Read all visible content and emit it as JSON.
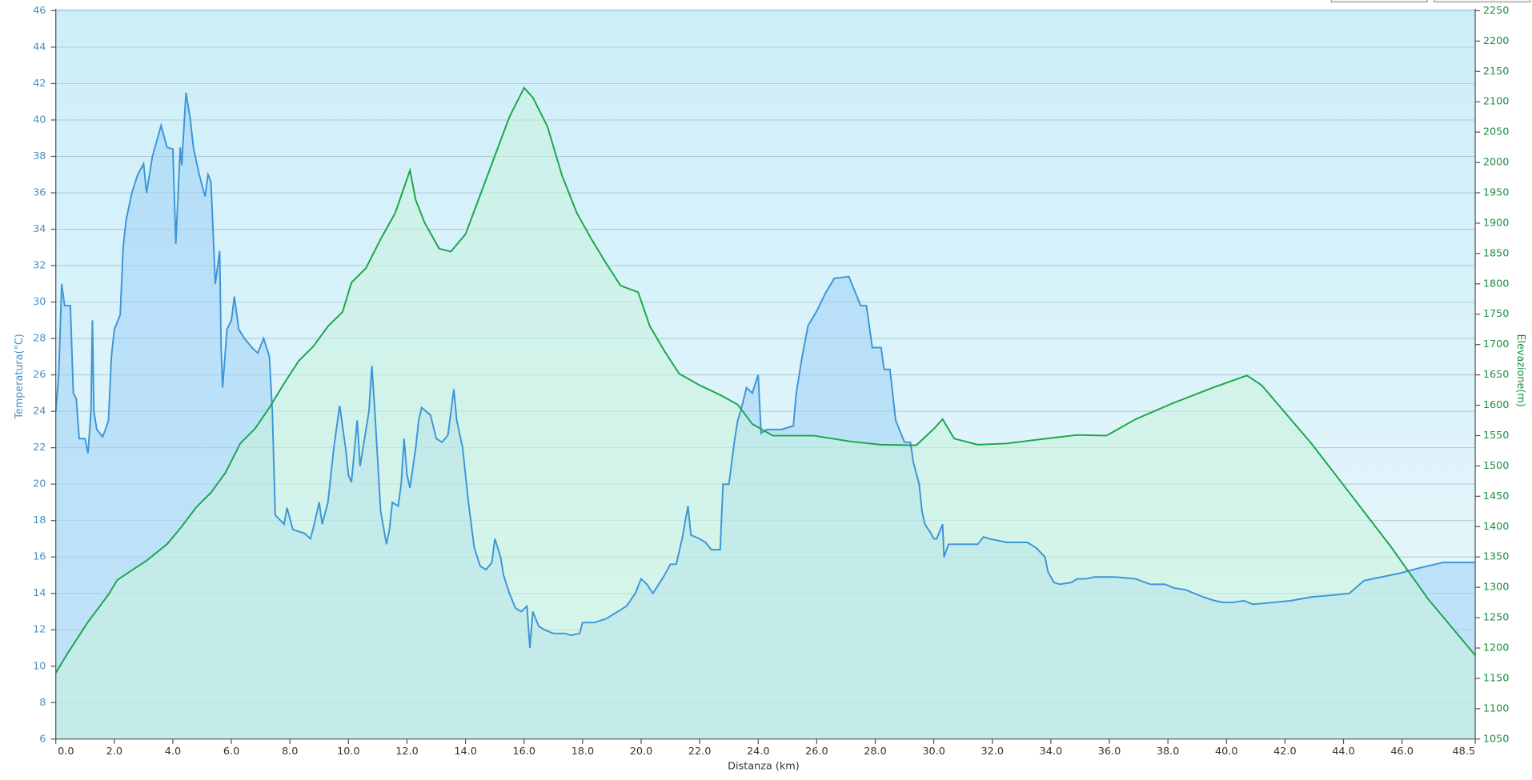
{
  "chart_data": {
    "type": "line",
    "xlabel": "Distanza  (km)",
    "ylabel": "Temperatura(°C)",
    "y2label": "Elevazione(m)",
    "xlim": [
      0,
      48.5
    ],
    "xticks": [
      {
        "value": 0,
        "label": "0.0"
      },
      {
        "value": 2,
        "label": "2.0"
      },
      {
        "value": 4,
        "label": "4.0"
      },
      {
        "value": 6,
        "label": "6.0"
      },
      {
        "value": 8,
        "label": "8.0"
      },
      {
        "value": 10,
        "label": "10.0"
      },
      {
        "value": 12,
        "label": "12.0"
      },
      {
        "value": 14,
        "label": "14.0"
      },
      {
        "value": 16,
        "label": "16.0"
      },
      {
        "value": 18,
        "label": "18.0"
      },
      {
        "value": 20,
        "label": "20.0"
      },
      {
        "value": 22,
        "label": "22.0"
      },
      {
        "value": 24,
        "label": "24.0"
      },
      {
        "value": 26,
        "label": "26.0"
      },
      {
        "value": 28,
        "label": "28.0"
      },
      {
        "value": 30,
        "label": "30.0"
      },
      {
        "value": 32,
        "label": "32.0"
      },
      {
        "value": 34,
        "label": "34.0"
      },
      {
        "value": 36,
        "label": "36.0"
      },
      {
        "value": 38,
        "label": "38.0"
      },
      {
        "value": 40,
        "label": "40.0"
      },
      {
        "value": 42,
        "label": "42.0"
      },
      {
        "value": 44,
        "label": "44.0"
      },
      {
        "value": 46,
        "label": "46.0"
      },
      48.5
    ],
    "ylim": [
      6,
      46
    ],
    "yticks": [
      6,
      8,
      10,
      12,
      14,
      16,
      18,
      20,
      22,
      24,
      26,
      28,
      30,
      32,
      34,
      36,
      38,
      40,
      42,
      44,
      46
    ],
    "y2lim": [
      1050,
      2250
    ],
    "y2ticks": [
      1050,
      1100,
      1150,
      1200,
      1250,
      1300,
      1350,
      1400,
      1450,
      1500,
      1550,
      1600,
      1650,
      1700,
      1750,
      1800,
      1850,
      1900,
      1950,
      2000,
      2050,
      2100,
      2150,
      2200,
      2250
    ],
    "grid": true,
    "series": [
      {
        "color": "#3d95d8",
        "fill": "#9fd2f5",
        "x": [
          0,
          0.1,
          0.2,
          0.3,
          0.5,
          0.6,
          0.7,
          0.8,
          1.0,
          1.1,
          1.2,
          1.25,
          1.3,
          1.4,
          1.6,
          1.7,
          1.8,
          1.9,
          2.0,
          2.2,
          2.3,
          2.4,
          2.6,
          2.7,
          2.8,
          3.0,
          3.1,
          3.3,
          3.6,
          3.8,
          4.0,
          4.1,
          4.25,
          4.3,
          4.45,
          4.6,
          4.7,
          4.9,
          5.1,
          5.2,
          5.3,
          5.45,
          5.6,
          5.65,
          5.7,
          5.85,
          6.0,
          6.1,
          6.25,
          6.45,
          6.7,
          6.9,
          7.1,
          7.3,
          7.4,
          7.5,
          7.8,
          7.9,
          8.1,
          8.5,
          8.7,
          8.8,
          9.0,
          9.1,
          9.3,
          9.5,
          9.7,
          9.9,
          10.0,
          10.1,
          10.3,
          10.4,
          10.5,
          10.7,
          10.8,
          10.9,
          11.1,
          11.3,
          11.4,
          11.5,
          11.7,
          11.8,
          11.9,
          12.0,
          12.1,
          12.3,
          12.4,
          12.5,
          12.8,
          13.0,
          13.2,
          13.4,
          13.6,
          13.7,
          13.9,
          14.1,
          14.3,
          14.5,
          14.7,
          14.9,
          15.0,
          15.2,
          15.3,
          15.5,
          15.7,
          15.9,
          16.1,
          16.2,
          16.3,
          16.5,
          16.7,
          17.0,
          17.4,
          17.6,
          17.9,
          18.0,
          18.4,
          18.6,
          18.8,
          19.2,
          19.5,
          19.8,
          20.0,
          20.2,
          20.4,
          20.6,
          20.8,
          21.0,
          21.2,
          21.3,
          21.4,
          21.6,
          21.7,
          22.0,
          22.2,
          22.4,
          22.7,
          22.8,
          23.0,
          23.2,
          23.3,
          23.4,
          23.6,
          23.8,
          24.0,
          24.1,
          24.3,
          24.8,
          25.2,
          25.3,
          25.5,
          25.7,
          26.0,
          26.3,
          26.6,
          27.1,
          27.5,
          27.7,
          27.9,
          28.2,
          28.3,
          28.5,
          28.7,
          29.0,
          29.2,
          29.3,
          29.5,
          29.6,
          29.7,
          29.9,
          30.0,
          30.1,
          30.3,
          30.35,
          30.5,
          30.9,
          31.5,
          31.7,
          31.9,
          32.2,
          32.5,
          32.9,
          33.2,
          33.5,
          33.8,
          33.9,
          34.1,
          34.3,
          34.7,
          34.9,
          35.2,
          35.5,
          36.2,
          36.9,
          37.4,
          37.9,
          38.2,
          38.6,
          38.9,
          39.2,
          39.6,
          39.9,
          40.2,
          40.6,
          40.9,
          41.6,
          42.2,
          42.9,
          43.6,
          44.2,
          44.7,
          45.3,
          45.9,
          46.6,
          47.4,
          48.5
        ],
        "values": [
          24,
          26,
          31,
          29.8,
          29.8,
          25,
          24.7,
          22.5,
          22.5,
          21.7,
          24,
          29,
          24,
          23,
          22.6,
          23,
          23.5,
          27,
          28.5,
          29.3,
          33,
          34.5,
          36,
          36.5,
          37,
          37.6,
          36,
          38,
          39.7,
          38.5,
          38.4,
          33.2,
          38.5,
          37.5,
          41.5,
          40,
          38.5,
          37,
          35.8,
          37,
          36.6,
          31,
          32.8,
          27.5,
          25.3,
          28.5,
          29,
          30.3,
          28.5,
          28,
          27.5,
          27.2,
          28,
          27,
          24,
          18.3,
          17.8,
          18.7,
          17.5,
          17.3,
          17,
          17.6,
          19,
          17.8,
          19,
          22,
          24.3,
          22,
          20.5,
          20.1,
          23.5,
          21,
          22,
          24,
          26.5,
          24,
          18.5,
          16.7,
          17.5,
          19,
          18.8,
          20,
          22.5,
          20.5,
          19.8,
          22,
          23.5,
          24.2,
          23.8,
          22.5,
          22.3,
          22.7,
          25.2,
          23.5,
          22,
          19,
          16.5,
          15.5,
          15.3,
          15.7,
          17,
          16,
          15,
          14,
          13.2,
          13,
          13.3,
          11,
          13,
          12.2,
          12,
          11.8,
          11.8,
          11.7,
          11.8,
          12.4,
          12.4,
          12.5,
          12.6,
          13,
          13.3,
          14,
          14.8,
          14.5,
          14,
          14.5,
          15,
          15.6,
          15.6,
          16.3,
          17,
          18.8,
          17.2,
          17,
          16.8,
          16.4,
          16.4,
          20,
          20,
          22.5,
          23.5,
          24,
          25.3,
          25,
          26,
          22.8,
          23,
          23,
          23.2,
          25,
          27,
          28.7,
          29.5,
          30.5,
          31.3,
          31.4,
          29.8,
          29.8,
          27.5,
          27.5,
          26.3,
          26.3,
          23.5,
          22.3,
          22.3,
          21.2,
          20,
          18.5,
          17.8,
          17.3,
          17,
          17,
          17.8,
          16,
          16.7,
          16.7,
          16.7,
          17.1,
          17,
          16.9,
          16.8,
          16.8,
          16.8,
          16.5,
          16,
          15.2,
          14.6,
          14.5,
          14.6,
          14.8,
          14.8,
          14.9,
          14.9,
          14.8,
          14.5,
          14.5,
          14.3,
          14.2,
          14,
          13.8,
          13.6,
          13.5,
          13.5,
          13.6,
          13.4,
          13.5,
          13.6,
          13.8,
          13.9,
          14,
          14.7,
          14.9,
          15.1,
          15.4,
          15.7,
          15.7
        ]
      },
      {
        "color": "#1aa54a",
        "fill": "#c8f3dc",
        "axis": "y2",
        "x": [
          0,
          0.4,
          1.1,
          1.8,
          2.1,
          2.6,
          3.1,
          3.8,
          4.3,
          4.8,
          5.3,
          5.8,
          6.3,
          6.8,
          7.3,
          7.8,
          8.3,
          8.8,
          9.3,
          9.8,
          10.1,
          10.6,
          11.1,
          11.6,
          12.1,
          12.3,
          12.6,
          13.1,
          13.5,
          14.0,
          14.5,
          15.0,
          15.5,
          16.0,
          16.3,
          16.8,
          17.3,
          17.8,
          18.3,
          18.8,
          19.3,
          19.9,
          20.3,
          20.8,
          21.3,
          22.0,
          22.7,
          23.3,
          23.8,
          24.5,
          25.9,
          27.2,
          28.2,
          29.4,
          30.0,
          30.3,
          30.7,
          31.5,
          32.5,
          33.5,
          34.9,
          35.9,
          36.9,
          38.2,
          39.6,
          40.7,
          41.2,
          42.9,
          44.2,
          45.6,
          46.9,
          48.5
        ],
        "values": [
          1159,
          1191,
          1243,
          1288,
          1312,
          1328,
          1344,
          1371,
          1400,
          1432,
          1456,
          1489,
          1537,
          1561,
          1596,
          1636,
          1673,
          1697,
          1730,
          1754,
          1802,
          1826,
          1874,
          1917,
          1987,
          1938,
          1901,
          1858,
          1853,
          1882,
          1946,
          2011,
          2075,
          2123,
          2107,
          2059,
          1978,
          1917,
          1874,
          1834,
          1797,
          1786,
          1730,
          1689,
          1652,
          1633,
          1617,
          1601,
          1569,
          1550,
          1550,
          1540,
          1535,
          1534,
          1561,
          1577,
          1545,
          1535,
          1537,
          1543,
          1551,
          1550,
          1577,
          1604,
          1630,
          1649,
          1633,
          1537,
          1456,
          1368,
          1280,
          1188
        ]
      }
    ]
  }
}
